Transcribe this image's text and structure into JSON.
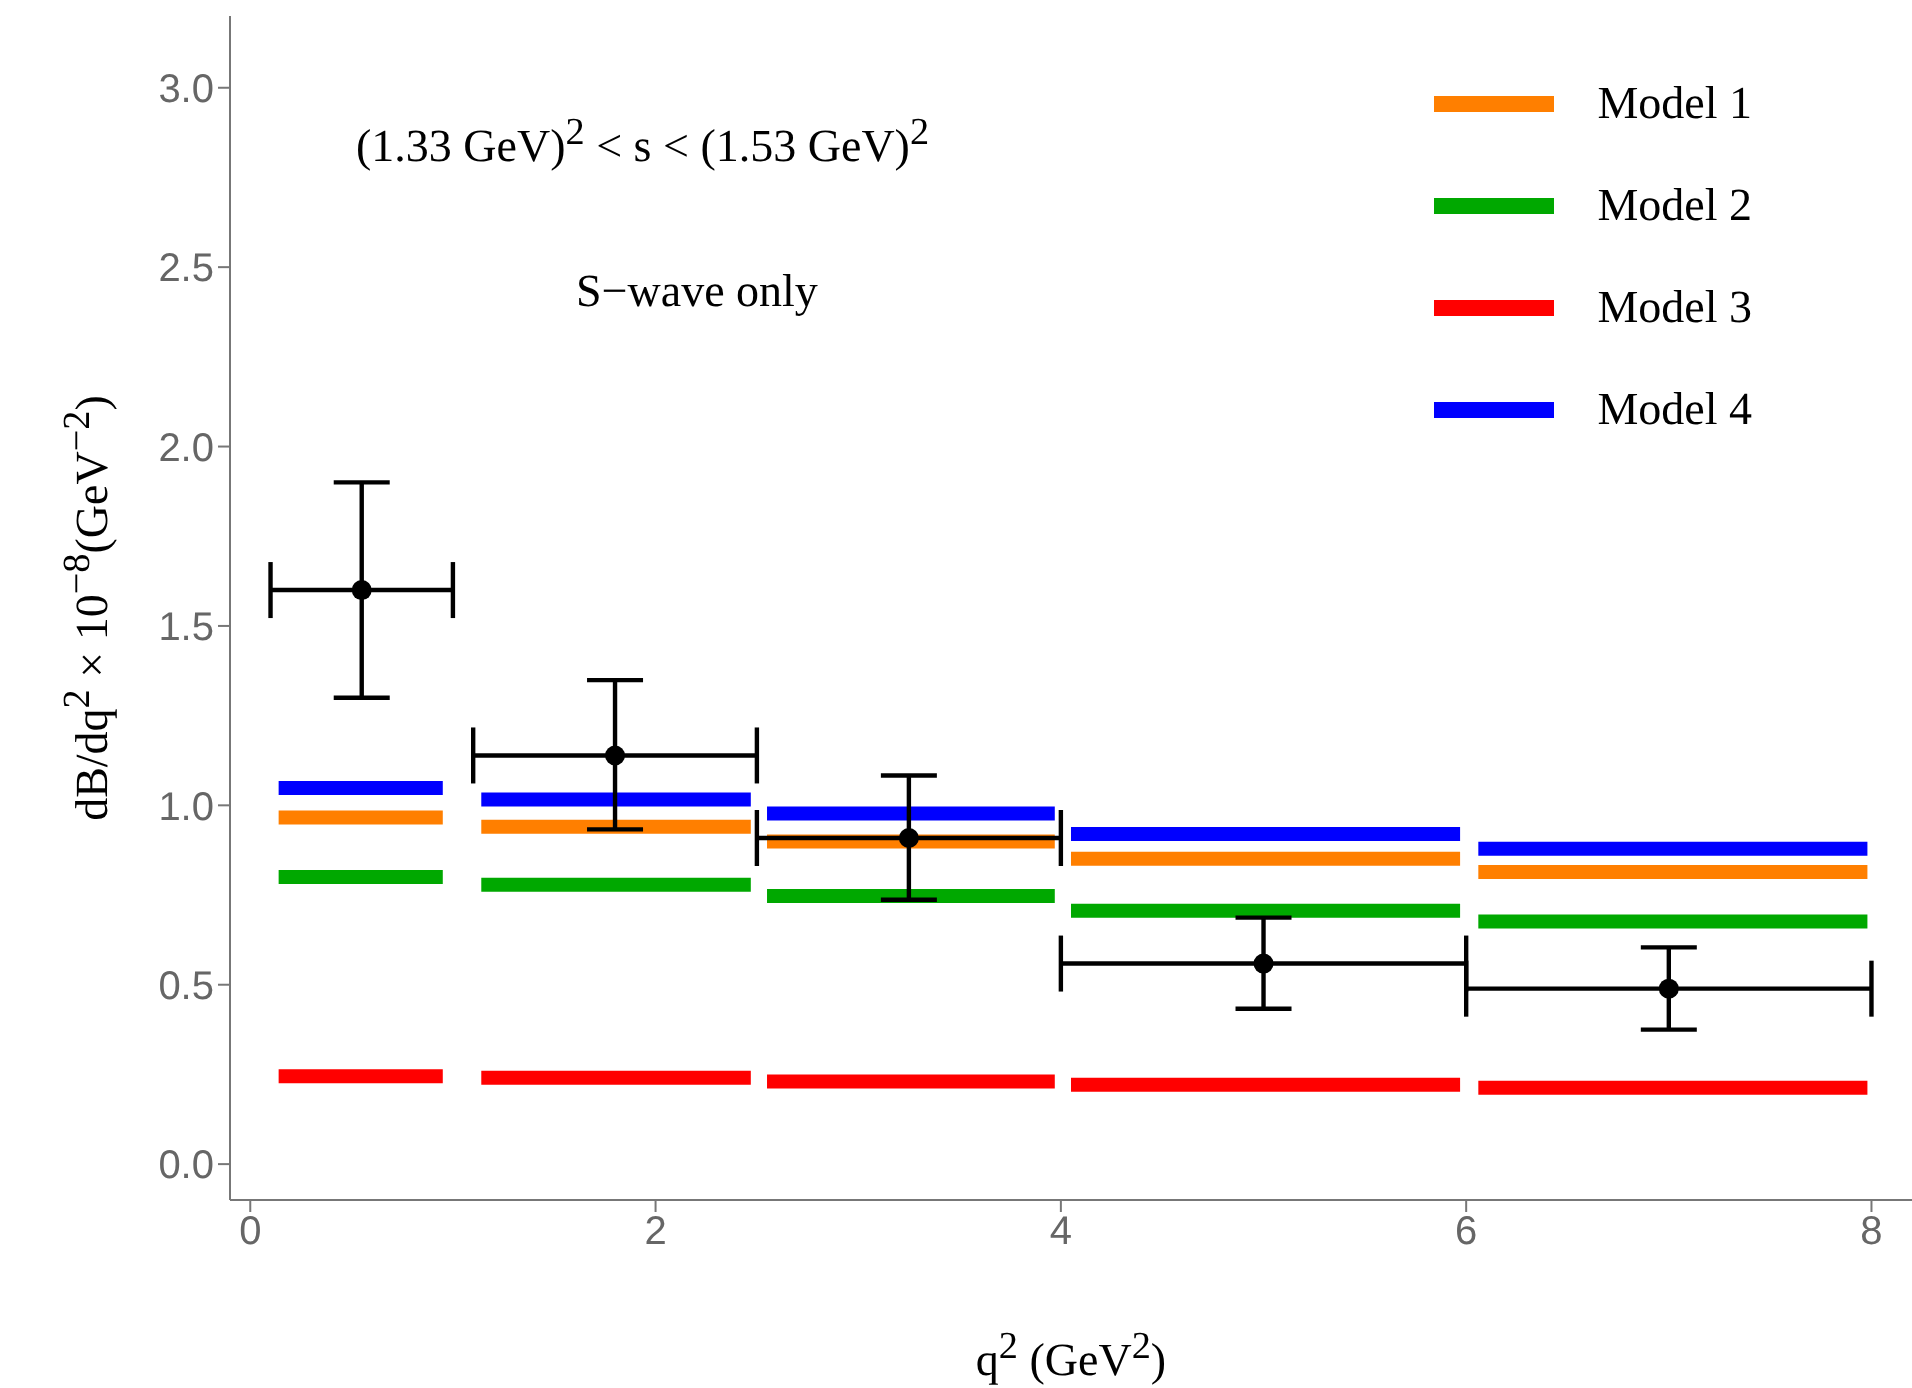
{
  "chart_data": {
    "type": "line",
    "xlabel": "q$^{2}$ (GeV$^{2}$)",
    "ylabel": "dB/dq$^{2}$ × 10$^{−8}$(GeV$^{−2}$)",
    "annotations": [
      "(1.33 GeV)$^{2}$ < s < (1.53 GeV)$^{2}$",
      "S−wave only"
    ],
    "xlim": [
      -0.1,
      8.2
    ],
    "xticks": [
      0,
      2,
      4,
      6,
      8
    ],
    "ylim": [
      -0.1,
      3.2
    ],
    "yticks": [
      {
        "value": 0,
        "label": "0.0"
      },
      {
        "value": 0.5,
        "label": "0.5"
      },
      {
        "value": 1,
        "label": "1.0"
      },
      {
        "value": 1.5,
        "label": "1.5"
      },
      {
        "value": 2,
        "label": "2.0"
      },
      {
        "value": 2.5,
        "label": "2.5"
      },
      {
        "value": 3,
        "label": "3.0"
      }
    ],
    "legend": "top right",
    "marker": "none",
    "line_style": "solid",
    "grid": false,
    "series": [
      {
        "name": "Model 1",
        "color": "#ff7f00",
        "x": [
          0.14,
          0.95,
          1.05,
          1.14,
          2.47,
          2.51,
          2.55,
          3.97,
          4.01,
          4.05,
          5.97,
          6.01,
          6.06,
          7.98
        ],
        "values": [
          0.966,
          0.966,
          null,
          0.94,
          0.94,
          null,
          0.899,
          0.899,
          null,
          0.851,
          0.851,
          null,
          0.814,
          0.814
        ]
      },
      {
        "name": "Model 2",
        "color": "#00a800",
        "x": [
          0.14,
          0.95,
          1.05,
          1.14,
          2.47,
          2.51,
          2.55,
          3.97,
          4.01,
          4.05,
          5.97,
          6.01,
          6.06,
          7.98
        ],
        "values": [
          0.8,
          0.8,
          null,
          0.779,
          0.779,
          null,
          0.747,
          0.747,
          null,
          0.706,
          0.706,
          null,
          0.676,
          0.676
        ]
      },
      {
        "name": "Model 3",
        "color": "#ff0000",
        "x": [
          0.14,
          0.95,
          1.05,
          1.14,
          2.47,
          2.51,
          2.55,
          3.97,
          4.01,
          4.05,
          5.97,
          6.01,
          6.06,
          7.98
        ],
        "values": [
          0.245,
          0.245,
          null,
          0.241,
          0.241,
          null,
          0.23,
          0.23,
          null,
          0.221,
          0.221,
          null,
          0.213,
          0.213
        ]
      },
      {
        "name": "Model 4",
        "color": "#0000ff",
        "x": [
          0.14,
          0.95,
          1.05,
          1.14,
          2.47,
          2.51,
          2.55,
          3.97,
          4.01,
          4.05,
          5.97,
          6.01,
          6.06,
          7.98
        ],
        "values": [
          1.048,
          1.048,
          null,
          1.016,
          1.016,
          null,
          0.977,
          0.977,
          null,
          0.92,
          0.92,
          null,
          0.879,
          0.879
        ]
      },
      {
        "type": "scatter",
        "color": "#000000",
        "marker": "circle",
        "x": [
          0.55,
          1.8,
          3.25,
          5.0,
          7.0
        ],
        "values": [
          1.6,
          1.139,
          0.909,
          0.559,
          0.489
        ],
        "errors": [
          [
            1.3,
            1.9
          ],
          [
            0.933,
            1.349
          ],
          [
            0.737,
            1.083
          ],
          [
            0.433,
            0.687
          ],
          [
            0.375,
            0.604
          ]
        ],
        "xerrors": [
          [
            0.1,
            1.0
          ],
          [
            1.1,
            2.5
          ],
          [
            2.5,
            4.0
          ],
          [
            4.0,
            6.0
          ],
          [
            6.0,
            8.0
          ]
        ]
      }
    ]
  }
}
